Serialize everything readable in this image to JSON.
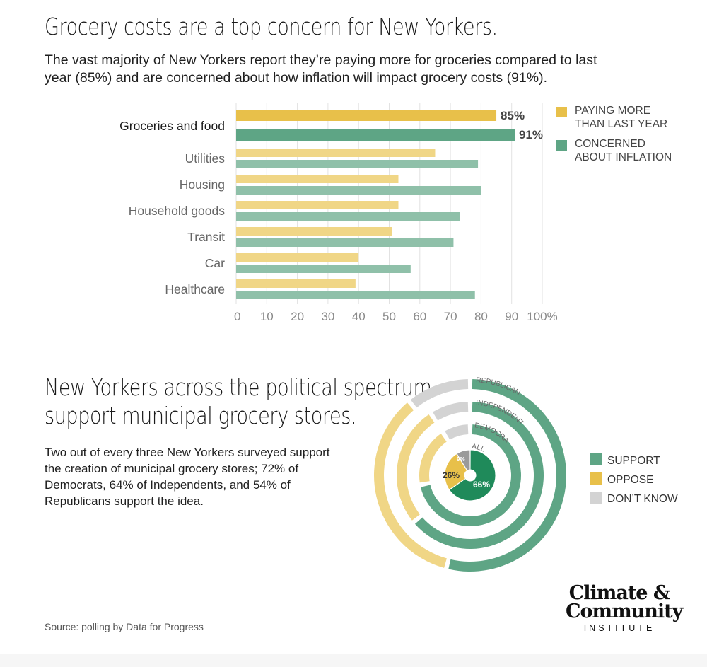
{
  "section1": {
    "title": "Grocery costs are a top concern for New Yorkers.",
    "subtitle": "The vast majority of New Yorkers report they’re paying more for groceries compared to last year (85%) and are concerned about how inflation will impact grocery costs (91%)."
  },
  "section2": {
    "title_line1": "New Yorkers across the political spectrum",
    "title_line2": "support municipal grocery stores.",
    "subtitle": "Two out of every three New Yorkers surveyed support the creation of municipal grocery stores; 72% of Democrats, 64% of Independents, and 54% of Republicans support the idea."
  },
  "source": "Source: polling by Data for Progress",
  "logo": {
    "line1": "Climate &",
    "line2": "Community",
    "line3": "INSTITUTE"
  },
  "colors": {
    "yellow": "#e8c04a",
    "yellow_light": "#f0d686",
    "green": "#5ea585",
    "green_light": "#8fc0a9",
    "green_dark": "#1f8a5a",
    "gray": "#d3d3d3",
    "gray_dark": "#9a9a9a"
  },
  "chart_data": [
    {
      "type": "bar",
      "orientation": "horizontal",
      "title": "Grocery costs are a top concern for New Yorkers.",
      "categories": [
        "Groceries and food",
        "Utilities",
        "Housing",
        "Household goods",
        "Transit",
        "Car",
        "Healthcare"
      ],
      "series": [
        {
          "name": "PAYING MORE THAN LAST YEAR",
          "values": [
            85,
            65,
            53,
            53,
            51,
            40,
            39
          ]
        },
        {
          "name": "CONCERNED ABOUT INFLATION",
          "values": [
            91,
            79,
            80,
            73,
            71,
            57,
            78
          ]
        }
      ],
      "data_labels": [
        "85%",
        "91%"
      ],
      "x_ticks": [
        "0",
        "10",
        "20",
        "30",
        "40",
        "50",
        "60",
        "70",
        "80",
        "90",
        "100%"
      ],
      "xlim": [
        0,
        100
      ],
      "grid": true,
      "legend_position": "right"
    },
    {
      "type": "pie",
      "variant": "radial-rings",
      "title": "New Yorkers across the political spectrum support municipal grocery stores.",
      "rings": [
        {
          "name": "ALL",
          "support": 66,
          "oppose": 26,
          "dont_know": 9
        },
        {
          "name": "DEMOCRAT",
          "support": 72,
          "oppose": 19,
          "dont_know": 9
        },
        {
          "name": "INDEPENDENT",
          "support": 64,
          "oppose": 27,
          "dont_know": 9
        },
        {
          "name": "REPUBLICAN",
          "support": 54,
          "oppose": 35,
          "dont_know": 11
        }
      ],
      "data_labels": [
        "66%",
        "26%",
        "9%"
      ],
      "legend": [
        "SUPPORT",
        "OPPOSE",
        "DON’T KNOW"
      ],
      "legend_position": "right"
    }
  ],
  "legend1": {
    "item1_line1": "PAYING MORE",
    "item1_line2": "THAN LAST YEAR",
    "item2_line1": "CONCERNED",
    "item2_line2": "ABOUT INFLATION"
  },
  "legend2": {
    "support": "SUPPORT",
    "oppose": "OPPOSE",
    "dont_know": "DON’T KNOW"
  }
}
